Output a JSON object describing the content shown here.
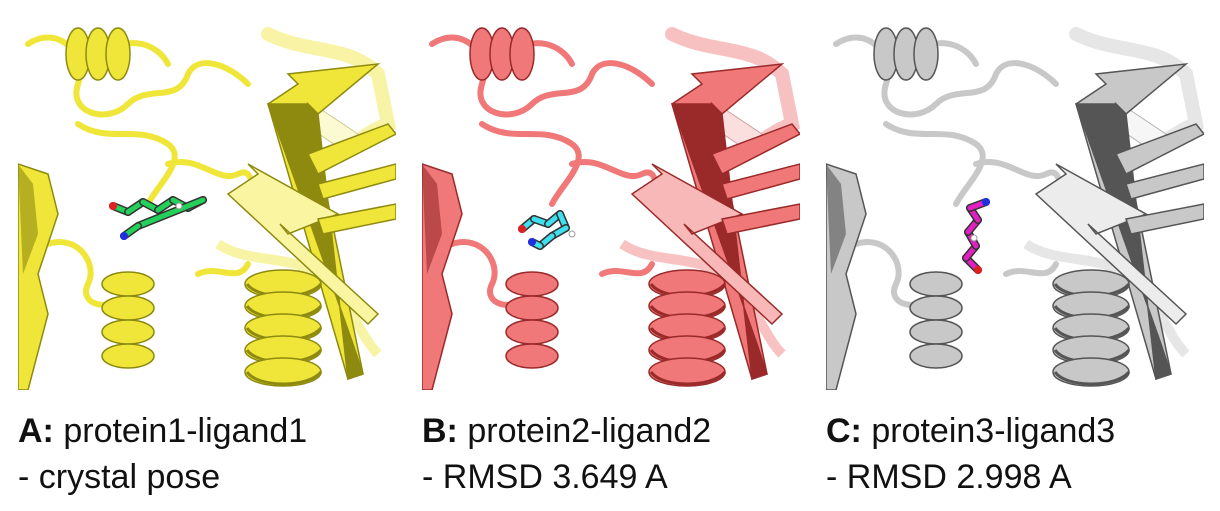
{
  "panels": [
    {
      "id": "A",
      "letter": "A:",
      "title": "protein1-ligand1",
      "subtitle": "- crystal pose",
      "protein_color": "#f0e63a",
      "protein_dark": "#8e8a10",
      "protein_light": "#faf5a0",
      "ligand_color": "#22d05a"
    },
    {
      "id": "B",
      "letter": "B:",
      "title": "protein2-ligand2",
      "subtitle": "- RMSD 3.649 A",
      "protein_color": "#f07878",
      "protein_dark": "#9a2a2a",
      "protein_light": "#f8b8b8",
      "ligand_color": "#3ee0f0"
    },
    {
      "id": "C",
      "letter": "C:",
      "title": "protein3-ligand3",
      "subtitle": "- RMSD 2.998 A",
      "protein_color": "#c8c8c8",
      "protein_dark": "#555555",
      "protein_light": "#ececec",
      "ligand_color": "#e020c0"
    }
  ]
}
